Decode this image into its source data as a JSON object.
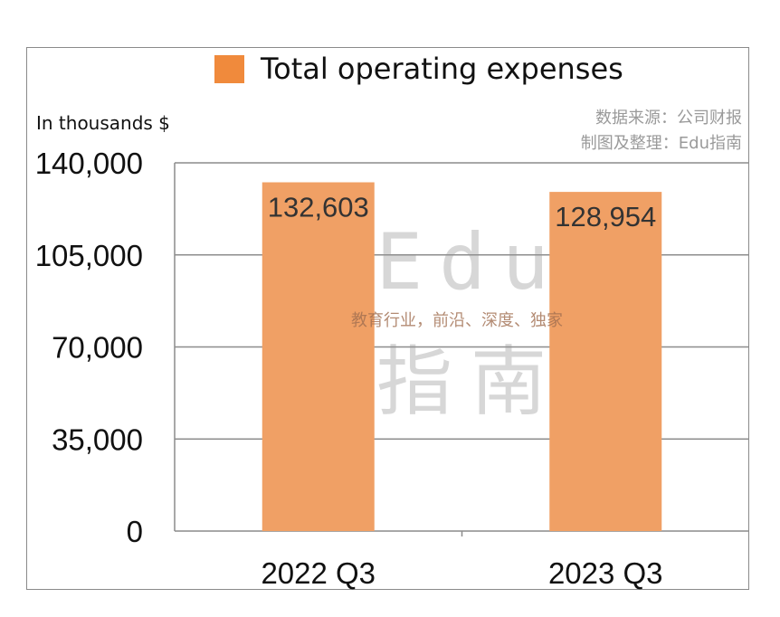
{
  "chart_data": {
    "type": "bar",
    "title": "",
    "xlabel": "",
    "ylabel": "In thousands $",
    "categories": [
      "2022 Q3",
      "2023 Q3"
    ],
    "series": [
      {
        "name": "Total operating expenses",
        "values": [
          132603,
          128954
        ],
        "color": "#F0A065"
      }
    ],
    "data_labels": [
      "132,603",
      "128,954"
    ],
    "ylim": [
      0,
      140000
    ],
    "yticks": [
      "0",
      "35,000",
      "70,000",
      "105,000",
      "140,000"
    ],
    "ytick_values": [
      0,
      35000,
      70000,
      105000,
      140000
    ],
    "grid": true,
    "legend": "top",
    "legend_swatch_color": "#F08A3C"
  },
  "source_note": {
    "line1": "数据来源：公司财报",
    "line2": "制图及整理：Edu指南"
  },
  "watermark": {
    "edu": "Edu",
    "tagline": "教育行业，前沿、深度、独家",
    "chinese": "指南"
  }
}
